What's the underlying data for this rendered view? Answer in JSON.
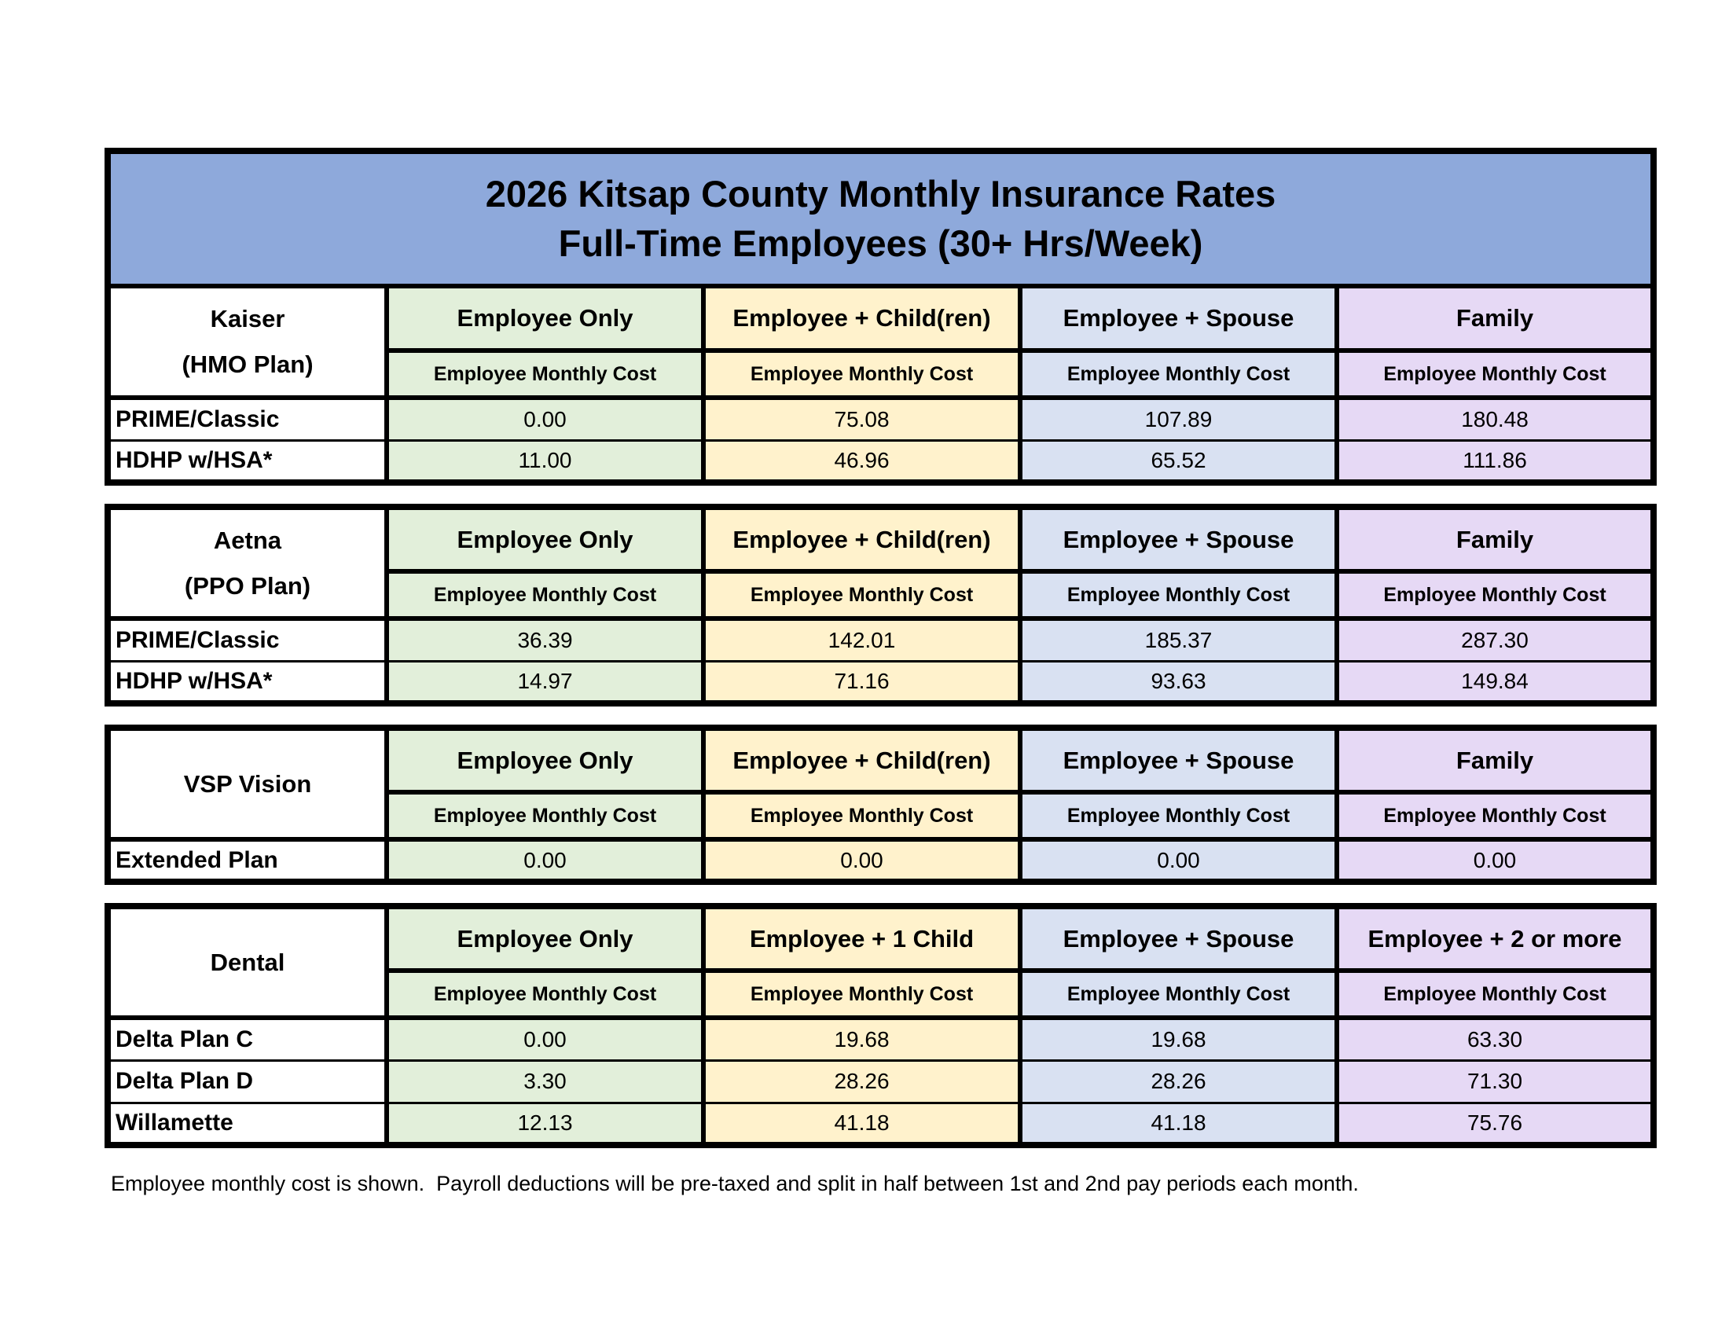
{
  "title": {
    "line1": "2026 Kitsap County Monthly Insurance Rates",
    "line2": "Full-Time Employees (30+ Hrs/Week)"
  },
  "labels": {
    "monthly_cost": "Employee Monthly Cost"
  },
  "colors": {
    "title_bg": "#8EA9DB",
    "employee_only_bg": "#E2EFDA",
    "employee_child_bg": "#FFF2CC",
    "employee_spouse_bg": "#D9E1F2",
    "family_bg": "#E6D9F5",
    "border": "#000000",
    "page_bg": "#FFFFFF"
  },
  "tables": {
    "kaiser": {
      "name_line1": "Kaiser",
      "name_line2": "(HMO Plan)",
      "columns": [
        "Employee Only",
        "Employee + Child(ren)",
        "Employee + Spouse",
        "Family"
      ],
      "rows": [
        {
          "label": "PRIME/Classic",
          "values": [
            "0.00",
            "75.08",
            "107.89",
            "180.48"
          ]
        },
        {
          "label": "HDHP w/HSA*",
          "values": [
            "11.00",
            "46.96",
            "65.52",
            "111.86"
          ]
        }
      ]
    },
    "aetna": {
      "name_line1": "Aetna",
      "name_line2": "(PPO Plan)",
      "columns": [
        "Employee Only",
        "Employee + Child(ren)",
        "Employee + Spouse",
        "Family"
      ],
      "rows": [
        {
          "label": "PRIME/Classic",
          "values": [
            "36.39",
            "142.01",
            "185.37",
            "287.30"
          ]
        },
        {
          "label": "HDHP w/HSA*",
          "values": [
            "14.97",
            "71.16",
            "93.63",
            "149.84"
          ]
        }
      ]
    },
    "vsp": {
      "name_line1": "VSP Vision",
      "columns": [
        "Employee Only",
        "Employee + Child(ren)",
        "Employee + Spouse",
        "Family"
      ],
      "rows": [
        {
          "label": "Extended Plan",
          "values": [
            "0.00",
            "0.00",
            "0.00",
            "0.00"
          ]
        }
      ]
    },
    "dental": {
      "name_line1": "Dental",
      "columns": [
        "Employee Only",
        "Employee + 1 Child",
        "Employee + Spouse",
        "Employee + 2 or more"
      ],
      "rows": [
        {
          "label": "Delta Plan C",
          "values": [
            "0.00",
            "19.68",
            "19.68",
            "63.30"
          ]
        },
        {
          "label": "Delta Plan D",
          "values": [
            "3.30",
            "28.26",
            "28.26",
            "71.30"
          ]
        },
        {
          "label": "Willamette",
          "values": [
            "12.13",
            "41.18",
            "41.18",
            "75.76"
          ]
        }
      ]
    }
  },
  "footer": "Employee monthly cost is shown.  Payroll deductions will be pre-taxed and split in half between 1st and 2nd pay periods each month."
}
